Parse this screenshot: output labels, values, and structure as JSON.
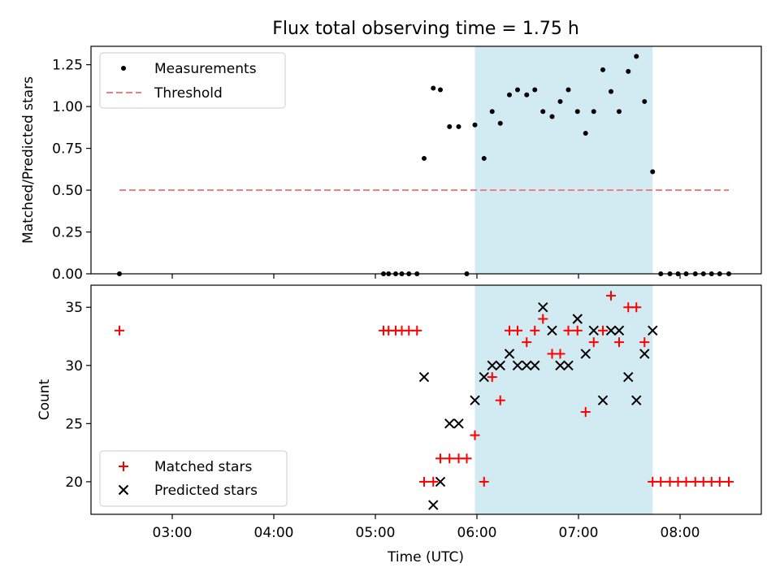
{
  "title": "Flux total observing time = 1.75 h",
  "chart_data": [
    {
      "type": "scatter",
      "ylabel": "Matched/Predicted stars",
      "xlabel": "",
      "xlim": [
        2.2,
        8.8
      ],
      "ylim": [
        0,
        1.36
      ],
      "yticks": [
        "0.00",
        "0.25",
        "0.50",
        "0.75",
        "1.00",
        "1.25"
      ],
      "ytick_values": [
        0,
        0.25,
        0.5,
        0.75,
        1.0,
        1.25
      ],
      "shaded_span": [
        5.98,
        7.73
      ],
      "shade_color": "#add8e6",
      "threshold": {
        "name": "Threshold",
        "value": 0.5,
        "x_range": [
          2.48,
          8.48
        ],
        "color": "#f08080"
      },
      "legend": {
        "placement": "upper-left",
        "entries": [
          "Measurements",
          "Threshold"
        ]
      },
      "series": [
        {
          "name": "Measurements",
          "marker": "dot",
          "color": "#000000",
          "x": [
            2.48,
            5.08,
            5.13,
            5.2,
            5.26,
            5.33,
            5.41,
            5.48,
            5.57,
            5.64,
            5.73,
            5.82,
            5.9,
            5.98,
            6.07,
            6.15,
            6.23,
            6.32,
            6.4,
            6.49,
            6.57,
            6.65,
            6.74,
            6.82,
            6.9,
            6.99,
            7.07,
            7.15,
            7.24,
            7.32,
            7.4,
            7.49,
            7.57,
            7.65,
            7.73,
            7.81,
            7.9,
            7.98,
            8.06,
            8.15,
            8.23,
            8.31,
            8.39,
            8.48
          ],
          "y": [
            0,
            0,
            0,
            0,
            0,
            0,
            0,
            0.69,
            1.11,
            1.1,
            0.88,
            0.88,
            0,
            0.89,
            0.69,
            0.97,
            0.9,
            1.07,
            1.1,
            1.07,
            1.1,
            0.97,
            0.94,
            1.03,
            1.1,
            0.97,
            0.84,
            0.97,
            1.22,
            1.09,
            0.97,
            1.21,
            1.3,
            1.03,
            0.61,
            0,
            0,
            0,
            0,
            0,
            0,
            0,
            0,
            0
          ]
        }
      ]
    },
    {
      "type": "scatter",
      "ylabel": "Count",
      "xlabel": "Time (UTC)",
      "xlim": [
        2.2,
        8.8
      ],
      "ylim": [
        17.2,
        36.9
      ],
      "yticks": [
        "20",
        "25",
        "30",
        "35"
      ],
      "ytick_values": [
        20,
        25,
        30,
        35
      ],
      "xticks": [
        "03:00",
        "04:00",
        "05:00",
        "06:00",
        "07:00",
        "08:00"
      ],
      "xtick_values": [
        3,
        4,
        5,
        6,
        7,
        8
      ],
      "shaded_span": [
        5.98,
        7.73
      ],
      "shade_color": "#add8e6",
      "legend": {
        "placement": "lower-left",
        "entries": [
          "Matched stars",
          "Predicted stars"
        ]
      },
      "series": [
        {
          "name": "Matched stars",
          "marker": "plus",
          "color": "#ff0000",
          "x": [
            2.48,
            5.08,
            5.13,
            5.2,
            5.26,
            5.33,
            5.41,
            5.48,
            5.57,
            5.64,
            5.73,
            5.82,
            5.9,
            5.98,
            6.07,
            6.15,
            6.23,
            6.32,
            6.4,
            6.49,
            6.57,
            6.65,
            6.74,
            6.82,
            6.9,
            6.99,
            7.07,
            7.15,
            7.24,
            7.32,
            7.4,
            7.49,
            7.57,
            7.65,
            7.73,
            7.81,
            7.9,
            7.98,
            8.06,
            8.15,
            8.23,
            8.31,
            8.39,
            8.48
          ],
          "y": [
            33,
            33,
            33,
            33,
            33,
            33,
            33,
            20,
            20,
            22,
            22,
            22,
            22,
            24,
            20,
            29,
            27,
            33,
            33,
            32,
            33,
            34,
            31,
            31,
            33,
            33,
            26,
            32,
            33,
            36,
            32,
            35,
            35,
            32,
            20,
            20,
            20,
            20,
            20,
            20,
            20,
            20,
            20,
            20
          ]
        },
        {
          "name": "Predicted stars",
          "marker": "x",
          "color": "#000000",
          "x": [
            5.48,
            5.57,
            5.64,
            5.73,
            5.82,
            5.98,
            6.07,
            6.15,
            6.23,
            6.32,
            6.4,
            6.49,
            6.57,
            6.65,
            6.74,
            6.82,
            6.9,
            6.99,
            7.07,
            7.15,
            7.24,
            7.32,
            7.4,
            7.49,
            7.57,
            7.65,
            7.73
          ],
          "y": [
            29,
            18,
            20,
            25,
            25,
            27,
            29,
            30,
            30,
            31,
            30,
            30,
            30,
            35,
            33,
            30,
            30,
            34,
            31,
            33,
            27,
            33,
            33,
            29,
            27,
            31,
            33
          ]
        }
      ]
    }
  ]
}
